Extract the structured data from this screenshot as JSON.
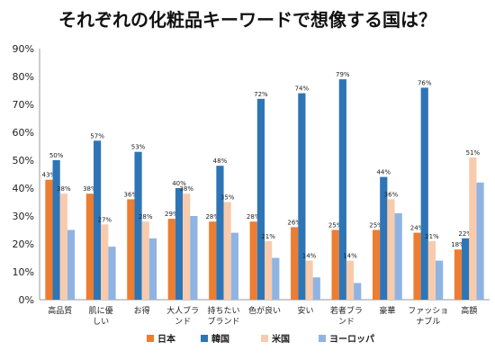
{
  "chart_data": {
    "type": "bar",
    "title": "それぞれの化粧品キーワードで想像する国は？",
    "categories": [
      [
        "高品質"
      ],
      [
        "肌に優",
        "しい"
      ],
      [
        "お得"
      ],
      [
        "大人ブラ",
        "ンド"
      ],
      [
        "持ちたい",
        "ブランド"
      ],
      [
        "色が良い"
      ],
      [
        "安い"
      ],
      [
        "若者ブラ",
        "ンド"
      ],
      [
        "豪華"
      ],
      [
        "ファッショ",
        "ナブル"
      ],
      [
        "高額"
      ]
    ],
    "series": [
      {
        "name": "日本",
        "color": "#ED7D31",
        "values": [
          43,
          38,
          36,
          29,
          28,
          28,
          26,
          25,
          25,
          24,
          18
        ]
      },
      {
        "name": "韓国",
        "color": "#2E75B6",
        "values": [
          50,
          57,
          53,
          40,
          48,
          72,
          74,
          79,
          44,
          76,
          22
        ]
      },
      {
        "name": "米国",
        "color": "#F8CBAD",
        "values": [
          38,
          27,
          28,
          38,
          35,
          21,
          14,
          14,
          36,
          21,
          51
        ]
      },
      {
        "name": "ヨーロッパ",
        "color": "#8FB4E3",
        "values": [
          25,
          19,
          22,
          30,
          24,
          15,
          8,
          6,
          31,
          14,
          42
        ]
      }
    ],
    "data_labels": [
      [
        43,
        50,
        38
      ],
      [
        38,
        57,
        27
      ],
      [
        36,
        53,
        28
      ],
      [
        29,
        40,
        38
      ],
      [
        28,
        48,
        35
      ],
      [
        28,
        72,
        21
      ],
      [
        26,
        74,
        14
      ],
      [
        25,
        79,
        14
      ],
      [
        25,
        44,
        36
      ],
      [
        24,
        76,
        21
      ],
      [
        18,
        22,
        51
      ]
    ],
    "ylim": [
      0,
      90
    ],
    "yticks": [
      "0%",
      "10%",
      "20%",
      "30%",
      "40%",
      "50%",
      "60%",
      "70%",
      "80%",
      "90%"
    ],
    "grid": false,
    "legend": "bottom"
  }
}
